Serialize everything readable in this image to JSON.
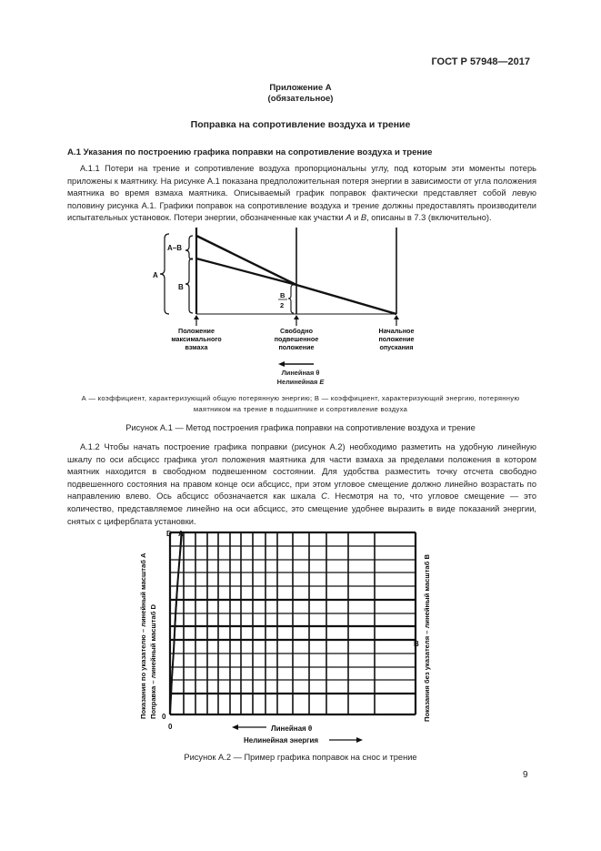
{
  "header": {
    "standard": "ГОСТ Р 57948—2017"
  },
  "appendix": {
    "title": "Приложение А",
    "status": "(обязательное)",
    "heading": "Поправка на сопротивление воздуха и трение"
  },
  "section_a1": {
    "heading": "А.1 Указания по построению графика поправки на сопротивление воздуха и трение",
    "para_a11": "А.1.1 Потери на трение и сопротивление воздуха пропорциональны углу, под которым эти моменты потерь приложены к маятнику. На рисунке А.1 показана предположительная потеря энергии в зависимости от угла положения маятника во время взмаха маятника. Описываемый график поправок фактически представляет собой левую половину рисунка А.1. Графики поправок на сопротивление воздуха и трение должны предоставлять производители испытательных установок. Потери энергии, обозначенные как участки ",
    "para_a11_A": "А",
    "para_a11_and": " и ",
    "para_a11_B": "В",
    "para_a11_end": ", описаны в 7.3 (включительно).",
    "para_a12": "А.1.2 Чтобы начать построение графика поправки (рисунок А.2) необходимо разметить на удобную линейную шкалу по оси абсцисс графика угол положения маятника для части взмаха за пределами положения в котором маятник находится в свободном подвешенном состоянии. Для удобства разместить точку отсчета свободно подвешенного состояния на правом конце оси абсцисс, при этом угловое смещение должно линейно возрастать по направлению влево. Ось абсцисс обозначается как шкала ",
    "para_a12_C": "С",
    "para_a12_end": ". Несмотря на то, что угловое смещение — это количество, представляемое линейно на оси абсцисс, это смещение удобнее выразить в виде показаний энергии, снятых с циферблата установки."
  },
  "figure_a1": {
    "label_A_minus_B": "А–В",
    "label_A": "А",
    "label_B": "В",
    "label_half_num": "В",
    "label_half_den": "2",
    "pos_max_1": "Положение",
    "pos_max_2": "максимального",
    "pos_max_3": "взмаха",
    "pos_free_1": "Свободно",
    "pos_free_2": "подвешенное",
    "pos_free_3": "положение",
    "pos_start_1": "Начальное",
    "pos_start_2": "положение",
    "pos_start_3": "опускания",
    "linear": "Линейная θ",
    "nonlinear": "Нелинейная ",
    "nonlinear_E": "Е",
    "legend_1": "А — коэффициент, характеризующий общую потерянную энергию; В — коэффициент, характеризующий энергию, потерянную",
    "legend_2": "маятником на трение в подшипнике и сопротивление воздуха",
    "caption": "Рисунок А.1 — Метод построения графика поправки на сопротивление воздуха и трение"
  },
  "figure_a2": {
    "label_D": "D",
    "label_A": "А",
    "label_B": "В",
    "zero_y": "0",
    "zero_x": "0",
    "left_axis_1": "Показания по указателю – линейный масштаб А",
    "left_axis_2": "Поправка – линейный масштаб D",
    "right_axis": "Показания без указателя – линейный масштаб В",
    "linear": "Линейная θ",
    "nonlinear": "Нелинейная энергия",
    "caption": "Рисунок А.2 — Пример графика поправок на снос и трение"
  },
  "footer": {
    "page_number": "9"
  }
}
